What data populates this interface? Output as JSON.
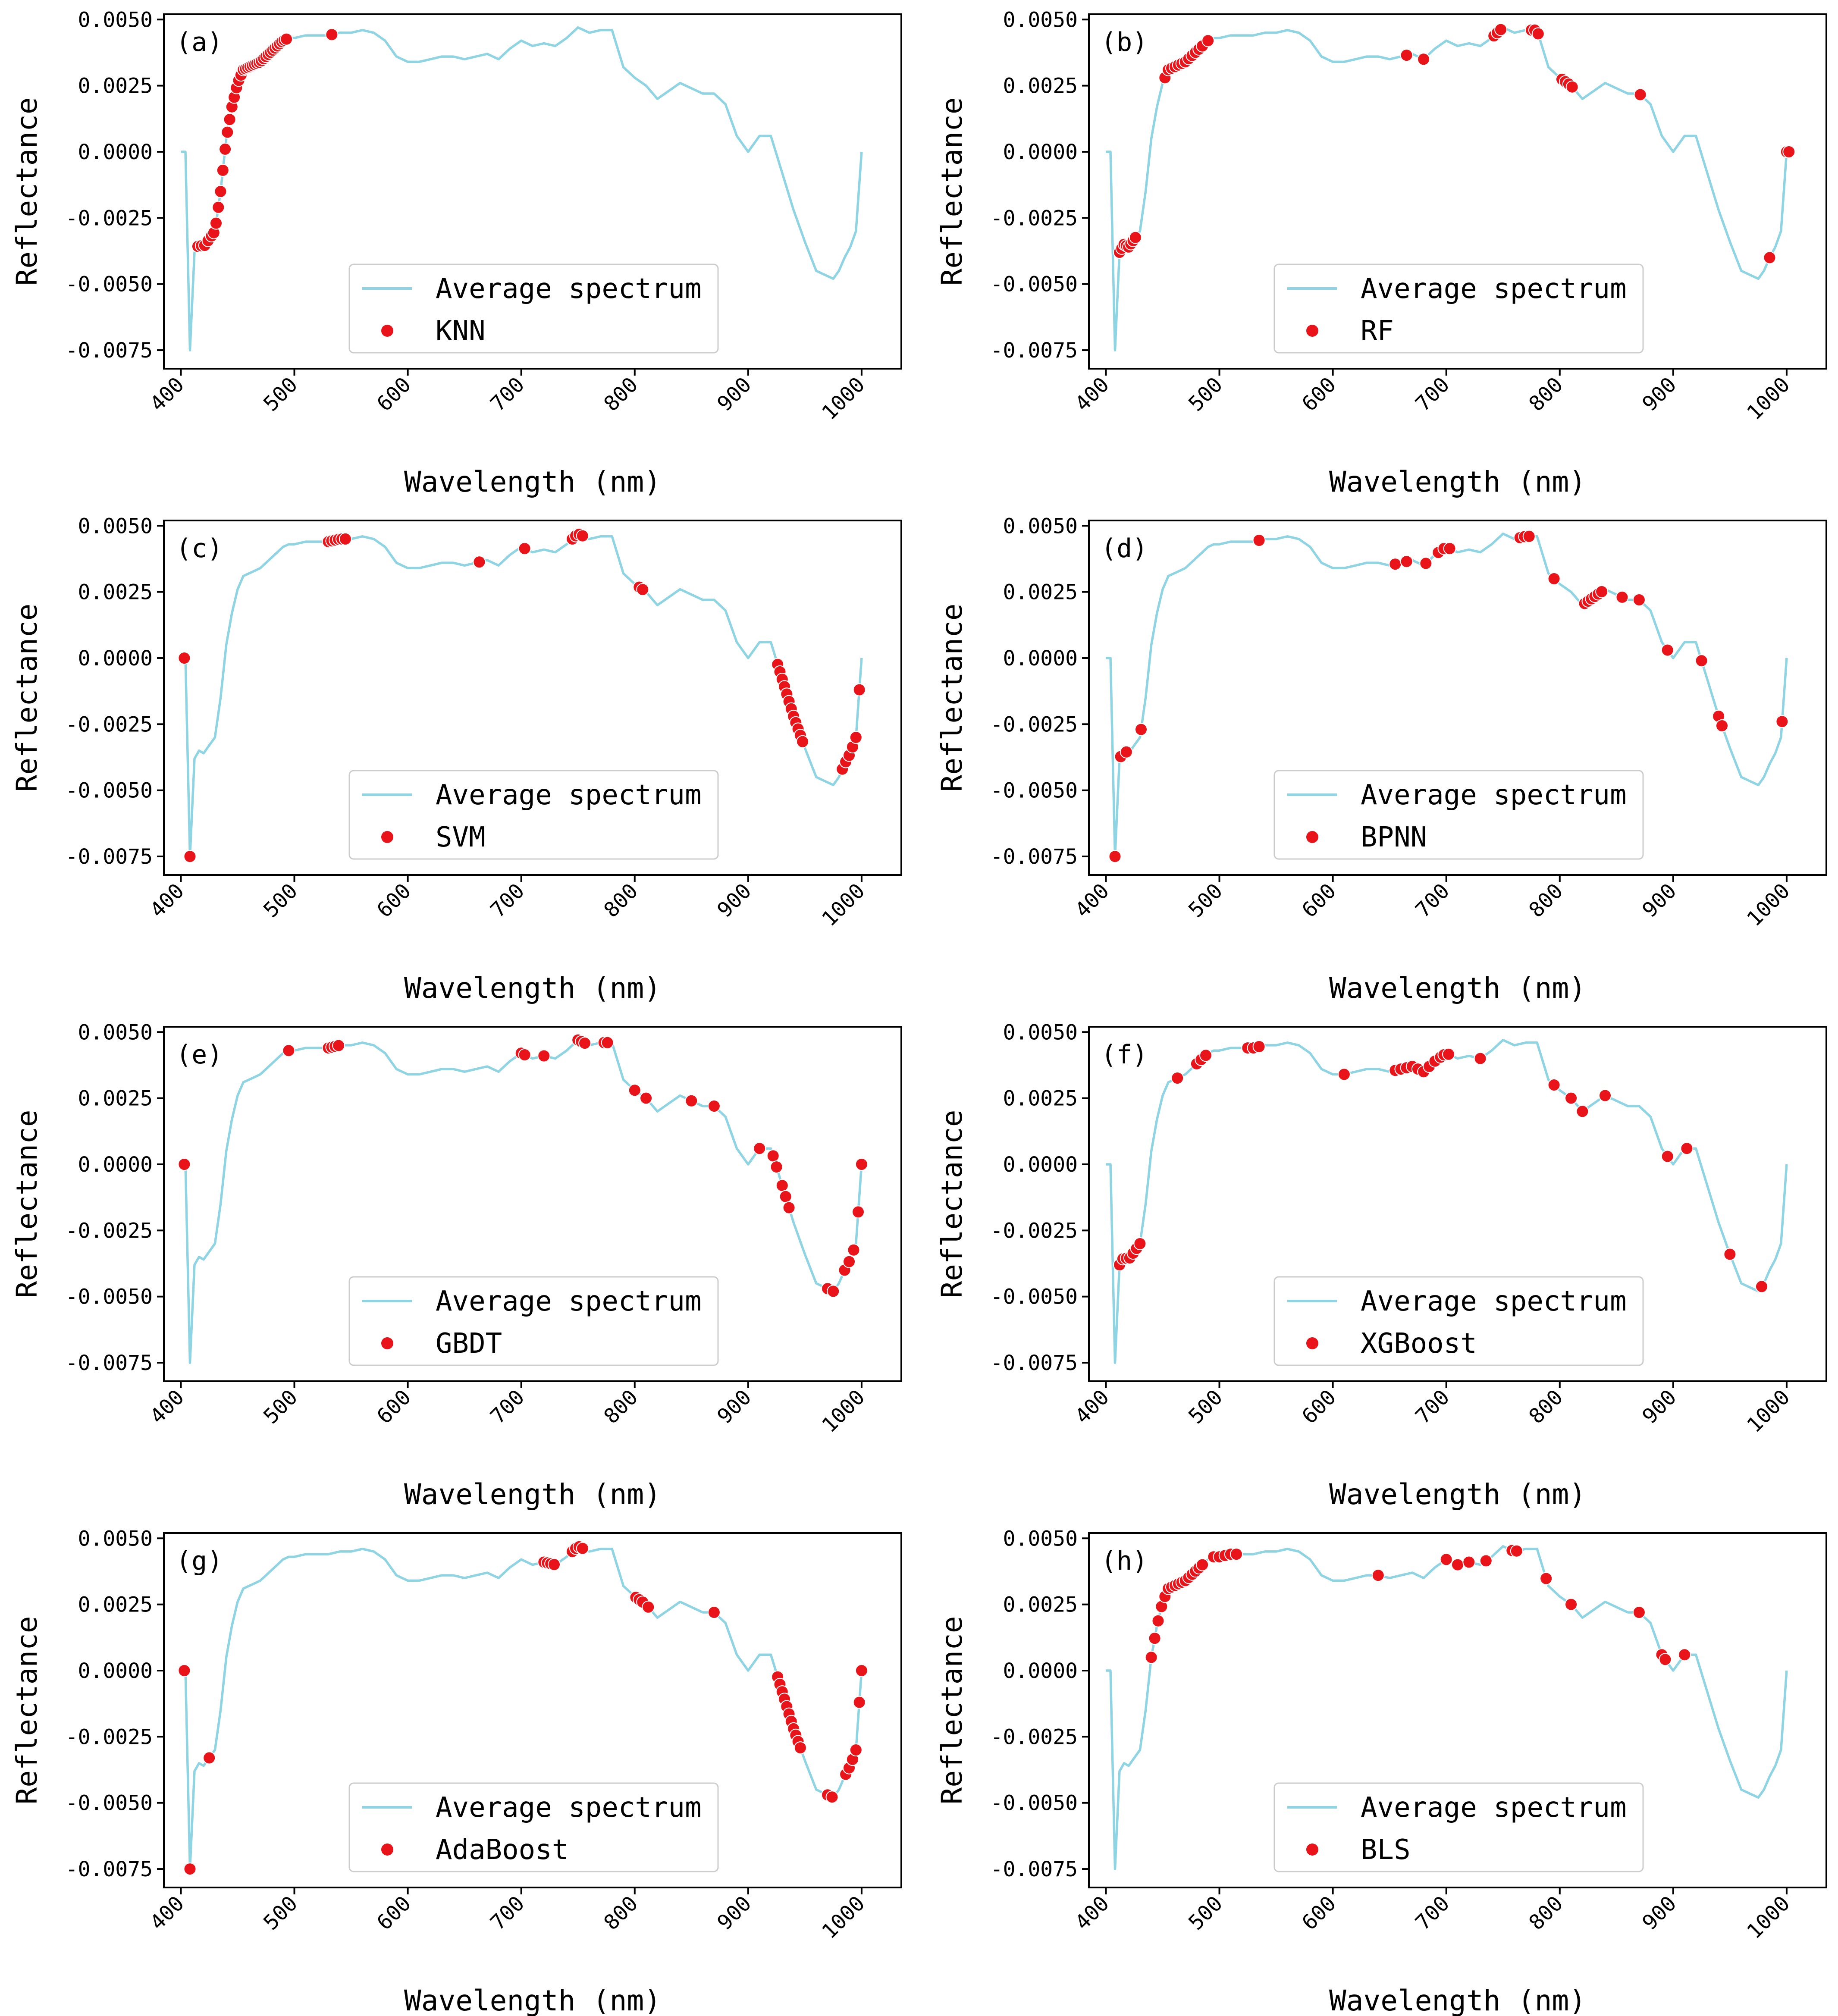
{
  "figure": {
    "colors": {
      "spectrum": "#8ed4e2",
      "points": "#e8141a",
      "frame": "#000000",
      "legend_border": "#cccccc"
    },
    "wavelength_samples": [
      400,
      404,
      408,
      412,
      416,
      420,
      425,
      430,
      435,
      440,
      445,
      450,
      455,
      460,
      465,
      470,
      475,
      480,
      485,
      490,
      495,
      500,
      510,
      520,
      530,
      540,
      550,
      560,
      570,
      580,
      590,
      600,
      610,
      620,
      630,
      640,
      650,
      660,
      670,
      680,
      690,
      700,
      710,
      720,
      730,
      740,
      750,
      755,
      760,
      770,
      780,
      790,
      800,
      810,
      820,
      830,
      840,
      850,
      860,
      870,
      880,
      890,
      900,
      910,
      920,
      930,
      940,
      950,
      960,
      970,
      975,
      980,
      985,
      990,
      995,
      1000
    ],
    "average_spectrum": [
      0.0,
      0.0,
      -0.0075,
      -0.0038,
      -0.0035,
      -0.0036,
      -0.0033,
      -0.003,
      -0.0015,
      0.0005,
      0.0017,
      0.0026,
      0.0031,
      0.0032,
      0.0033,
      0.0034,
      0.0036,
      0.0038,
      0.004,
      0.0042,
      0.0043,
      0.0043,
      0.0044,
      0.0044,
      0.0044,
      0.0045,
      0.0045,
      0.0046,
      0.0045,
      0.0042,
      0.0036,
      0.0034,
      0.0034,
      0.0035,
      0.0036,
      0.0036,
      0.0035,
      0.0036,
      0.0037,
      0.0035,
      0.0039,
      0.0042,
      0.004,
      0.0041,
      0.004,
      0.0043,
      0.0047,
      0.0046,
      0.0045,
      0.0046,
      0.0046,
      0.0032,
      0.0028,
      0.0025,
      0.002,
      0.0023,
      0.0026,
      0.0024,
      0.0022,
      0.0022,
      0.0018,
      0.0006,
      0.0,
      0.0006,
      0.0006,
      -0.0008,
      -0.0022,
      -0.0034,
      -0.0045,
      -0.0047,
      -0.0048,
      -0.0045,
      -0.004,
      -0.0036,
      -0.003,
      0.0
    ],
    "panels": [
      {
        "chart_data": {
          "type": "line",
          "panel_label": "(a)",
          "xlabel": "Wavelength (nm)",
          "ylabel": "Reflectance",
          "xlim": [
            385,
            1035
          ],
          "ylim": [
            -0.0082,
            0.0052
          ],
          "xticks": [
            "400",
            "500",
            "600",
            "700",
            "800",
            "900",
            "1000"
          ],
          "yticks": [
            "0.0050",
            "0.0025",
            "0.0000",
            "-0.0025",
            "-0.0050",
            "-0.0075"
          ],
          "legend": [
            "Average spectrum",
            "KNN"
          ],
          "selected_wavelengths": [
            415,
            418,
            421,
            424,
            427,
            429,
            431,
            433,
            435,
            437,
            439,
            441,
            443,
            445,
            447,
            449,
            451,
            453,
            455,
            457,
            459,
            461,
            463,
            465,
            467,
            469,
            471,
            473,
            475,
            477,
            479,
            481,
            483,
            485,
            487,
            489,
            491,
            493,
            533
          ]
        }
      },
      {
        "chart_data": {
          "type": "line",
          "panel_label": "(b)",
          "xlabel": "Wavelength (nm)",
          "ylabel": "Reflectance",
          "xlim": [
            385,
            1035
          ],
          "ylim": [
            -0.0082,
            0.0052
          ],
          "xticks": [
            "400",
            "500",
            "600",
            "700",
            "800",
            "900",
            "1000"
          ],
          "yticks": [
            "0.0050",
            "0.0025",
            "0.0000",
            "-0.0025",
            "-0.0050",
            "-0.0075"
          ],
          "legend": [
            "Average spectrum",
            "RF"
          ],
          "selected_wavelengths": [
            412,
            414,
            416,
            418,
            420,
            422,
            424,
            426,
            452,
            455,
            458,
            461,
            464,
            467,
            470,
            473,
            476,
            479,
            482,
            485,
            490,
            665,
            680,
            742,
            745,
            748,
            775,
            778,
            781,
            802,
            805,
            808,
            811,
            871,
            985,
            1000,
            1002
          ]
        }
      },
      {
        "chart_data": {
          "type": "line",
          "panel_label": "(c)",
          "xlabel": "Wavelength (nm)",
          "ylabel": "Reflectance",
          "xlim": [
            385,
            1035
          ],
          "ylim": [
            -0.0082,
            0.0052
          ],
          "xticks": [
            "400",
            "500",
            "600",
            "700",
            "800",
            "900",
            "1000"
          ],
          "yticks": [
            "0.0050",
            "0.0025",
            "0.0000",
            "-0.0025",
            "-0.0050",
            "-0.0075"
          ],
          "legend": [
            "Average spectrum",
            "SVM"
          ],
          "selected_wavelengths": [
            403,
            408,
            530,
            533,
            536,
            539,
            542,
            545,
            663,
            703,
            745,
            748,
            751,
            754,
            804,
            807,
            926,
            928,
            930,
            932,
            934,
            936,
            938,
            940,
            942,
            944,
            946,
            948,
            983,
            986,
            989,
            992,
            995,
            998
          ]
        }
      },
      {
        "chart_data": {
          "type": "line",
          "panel_label": "(d)",
          "xlabel": "Wavelength (nm)",
          "ylabel": "Reflectance",
          "xlim": [
            385,
            1035
          ],
          "ylim": [
            -0.0082,
            0.0052
          ],
          "xticks": [
            "400",
            "500",
            "600",
            "700",
            "800",
            "900",
            "1000"
          ],
          "yticks": [
            "0.0050",
            "0.0025",
            "0.0000",
            "-0.0025",
            "-0.0050",
            "-0.0075"
          ],
          "legend": [
            "Average spectrum",
            "BPNN"
          ],
          "selected_wavelengths": [
            408,
            413,
            418,
            431,
            535,
            655,
            665,
            682,
            693,
            698,
            703,
            765,
            769,
            773,
            795,
            822,
            825,
            828,
            831,
            834,
            837,
            855,
            870,
            895,
            925,
            940,
            943,
            996
          ]
        }
      },
      {
        "chart_data": {
          "type": "line",
          "panel_label": "(e)",
          "xlabel": "Wavelength (nm)",
          "ylabel": "Reflectance",
          "xlim": [
            385,
            1035
          ],
          "ylim": [
            -0.0082,
            0.0052
          ],
          "xticks": [
            "400",
            "500",
            "600",
            "700",
            "800",
            "900",
            "1000"
          ],
          "yticks": [
            "0.0050",
            "0.0025",
            "0.0000",
            "-0.0025",
            "-0.0050",
            "-0.0075"
          ],
          "legend": [
            "Average spectrum",
            "GBDT"
          ],
          "selected_wavelengths": [
            403,
            495,
            530,
            533,
            536,
            539,
            700,
            703,
            720,
            750,
            753,
            756,
            773,
            776,
            800,
            810,
            850,
            870,
            910,
            922,
            925,
            930,
            933,
            936,
            970,
            975,
            985,
            989,
            993,
            997,
            1000
          ]
        }
      },
      {
        "chart_data": {
          "type": "line",
          "panel_label": "(f)",
          "xlabel": "Wavelength (nm)",
          "ylabel": "Reflectance",
          "xlim": [
            385,
            1035
          ],
          "ylim": [
            -0.0082,
            0.0052
          ],
          "xticks": [
            "400",
            "500",
            "600",
            "700",
            "800",
            "900",
            "1000"
          ],
          "yticks": [
            "0.0050",
            "0.0025",
            "0.0000",
            "-0.0025",
            "-0.0050",
            "-0.0075"
          ],
          "legend": [
            "Average spectrum",
            "XGBoost"
          ],
          "selected_wavelengths": [
            412,
            415,
            418,
            421,
            424,
            427,
            430,
            463,
            480,
            484,
            488,
            525,
            530,
            535,
            610,
            655,
            660,
            665,
            670,
            675,
            680,
            685,
            690,
            695,
            698,
            702,
            730,
            795,
            810,
            820,
            840,
            895,
            912,
            950,
            978
          ]
        }
      },
      {
        "chart_data": {
          "type": "line",
          "panel_label": "(g)",
          "xlabel": "Wavelength (nm)",
          "ylabel": "Reflectance",
          "xlim": [
            385,
            1035
          ],
          "ylim": [
            -0.0082,
            0.0052
          ],
          "xticks": [
            "400",
            "500",
            "600",
            "700",
            "800",
            "900",
            "1000"
          ],
          "yticks": [
            "0.0050",
            "0.0025",
            "0.0000",
            "-0.0025",
            "-0.0050",
            "-0.0075"
          ],
          "legend": [
            "Average spectrum",
            "AdaBoost"
          ],
          "selected_wavelengths": [
            403,
            408,
            425,
            720,
            723,
            726,
            729,
            745,
            748,
            751,
            754,
            801,
            804,
            807,
            812,
            870,
            926,
            928,
            930,
            932,
            934,
            936,
            938,
            940,
            942,
            944,
            946,
            970,
            974,
            986,
            989,
            992,
            995,
            998,
            1000
          ]
        }
      },
      {
        "chart_data": {
          "type": "line",
          "panel_label": "(h)",
          "xlabel": "Wavelength (nm)",
          "ylabel": "Reflectance",
          "xlim": [
            385,
            1035
          ],
          "ylim": [
            -0.0082,
            0.0052
          ],
          "xticks": [
            "400",
            "500",
            "600",
            "700",
            "800",
            "900",
            "1000"
          ],
          "yticks": [
            "0.0050",
            "0.0025",
            "0.0000",
            "-0.0025",
            "-0.0050",
            "-0.0075"
          ],
          "legend": [
            "Average spectrum",
            "BLS"
          ],
          "selected_wavelengths": [
            440,
            443,
            446,
            449,
            452,
            455,
            458,
            461,
            464,
            467,
            470,
            473,
            476,
            479,
            482,
            485,
            495,
            500,
            505,
            510,
            515,
            640,
            700,
            710,
            720,
            735,
            758,
            762,
            788,
            810,
            870,
            890,
            893,
            910
          ]
        }
      }
    ]
  }
}
